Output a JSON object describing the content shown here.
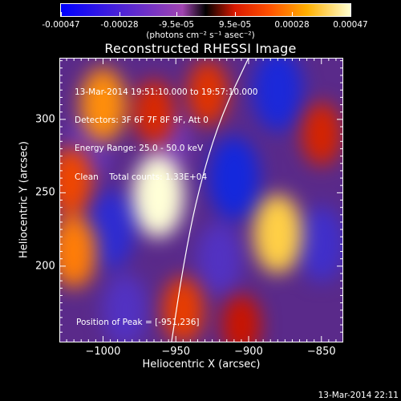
{
  "chart_data": {
    "type": "heatmap",
    "title": "Reconstructed RHESSI Image",
    "xlabel": "Heliocentric X (arcsec)",
    "ylabel": "Heliocentric Y (arcsec)",
    "xlim": [
      -1030,
      -835
    ],
    "ylim": [
      148,
      342
    ],
    "x_ticks": [
      -1000,
      -950,
      -900,
      -850
    ],
    "x_tick_labels": [
      "−1000",
      "−950",
      "−900",
      "−850"
    ],
    "y_ticks": [
      200,
      250,
      300
    ],
    "y_tick_labels": [
      "200",
      "250",
      "300"
    ],
    "colorbar": {
      "range": [
        -0.00047,
        0.00047
      ],
      "ticks": [
        -0.00047,
        -0.00028,
        -9.5e-05,
        9.5e-05,
        0.00028,
        0.00047
      ],
      "tick_labels": [
        "-0.00047",
        "-0.00028",
        "-9.5e-05",
        "9.5e-05",
        "0.00028",
        "0.00047"
      ],
      "unit": "(photons cm⁻² s⁻¹ asec⁻²)"
    },
    "peak": {
      "x": -951,
      "y": 236
    },
    "features": [
      {
        "x": -962,
        "y": 248,
        "value": 0.00047
      },
      {
        "x": -880,
        "y": 222,
        "value": 0.0004
      },
      {
        "x": -1000,
        "y": 310,
        "value": 0.00032
      },
      {
        "x": -1020,
        "y": 210,
        "value": 0.0003
      },
      {
        "x": -1022,
        "y": 258,
        "value": 0.00022
      },
      {
        "x": -945,
        "y": 170,
        "value": 0.0002
      },
      {
        "x": -928,
        "y": 318,
        "value": 0.00018
      },
      {
        "x": -850,
        "y": 290,
        "value": 0.00015
      },
      {
        "x": -905,
        "y": 160,
        "value": 0.00012
      },
      {
        "x": -965,
        "y": 305,
        "value": 0.00016
      },
      {
        "x": -910,
        "y": 260,
        "value": -0.00047
      },
      {
        "x": -880,
        "y": 320,
        "value": -0.00045
      },
      {
        "x": -995,
        "y": 225,
        "value": -0.0004
      },
      {
        "x": -850,
        "y": 215,
        "value": -0.00035
      },
      {
        "x": -985,
        "y": 170,
        "value": -0.0003
      },
      {
        "x": -1010,
        "y": 280,
        "value": -0.00025
      },
      {
        "x": -920,
        "y": 205,
        "value": -0.0003
      },
      {
        "x": -955,
        "y": 285,
        "value": -0.0002
      }
    ],
    "limb": [
      {
        "x": -953,
        "y": 148
      },
      {
        "x": -945,
        "y": 200
      },
      {
        "x": -935,
        "y": 250
      },
      {
        "x": -920,
        "y": 300
      },
      {
        "x": -900,
        "y": 342
      }
    ]
  },
  "annotations": {
    "line1": "13-Mar-2014 19:51:10.000 to 19:57:10.000",
    "line2": "Detectors: 3F 6F 7F 8F 9F, Att 0",
    "line3": "Energy Range: 25.0 - 50.0 keV",
    "line4": "Clean    Total counts: 1.33E+04",
    "peak_label": "Position of Peak = [-951,236]"
  },
  "footer_timestamp": "13-Mar-2014 22:11"
}
